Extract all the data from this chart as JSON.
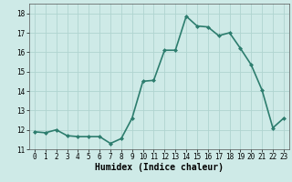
{
  "x": [
    0,
    1,
    2,
    3,
    4,
    5,
    6,
    7,
    8,
    9,
    10,
    11,
    12,
    13,
    14,
    15,
    16,
    17,
    18,
    19,
    20,
    21,
    22,
    23
  ],
  "y": [
    11.9,
    11.85,
    12.0,
    11.7,
    11.65,
    11.65,
    11.65,
    11.3,
    11.55,
    12.6,
    14.5,
    14.55,
    16.1,
    16.1,
    17.85,
    17.35,
    17.3,
    16.85,
    17.0,
    16.2,
    15.35,
    14.05,
    12.1,
    12.6
  ],
  "line_color": "#2d7d6e",
  "marker": "D",
  "marker_size": 2.0,
  "bg_color": "#ceeae7",
  "grid_color": "#b0d4d0",
  "ylim": [
    11,
    18.5
  ],
  "yticks": [
    11,
    12,
    13,
    14,
    15,
    16,
    17,
    18
  ],
  "xlim": [
    -0.5,
    23.5
  ],
  "xticks": [
    0,
    1,
    2,
    3,
    4,
    5,
    6,
    7,
    8,
    9,
    10,
    11,
    12,
    13,
    14,
    15,
    16,
    17,
    18,
    19,
    20,
    21,
    22,
    23
  ],
  "xlabel": "Humidex (Indice chaleur)",
  "xlabel_fontsize": 7,
  "tick_fontsize": 5.5,
  "line_width": 1.2
}
